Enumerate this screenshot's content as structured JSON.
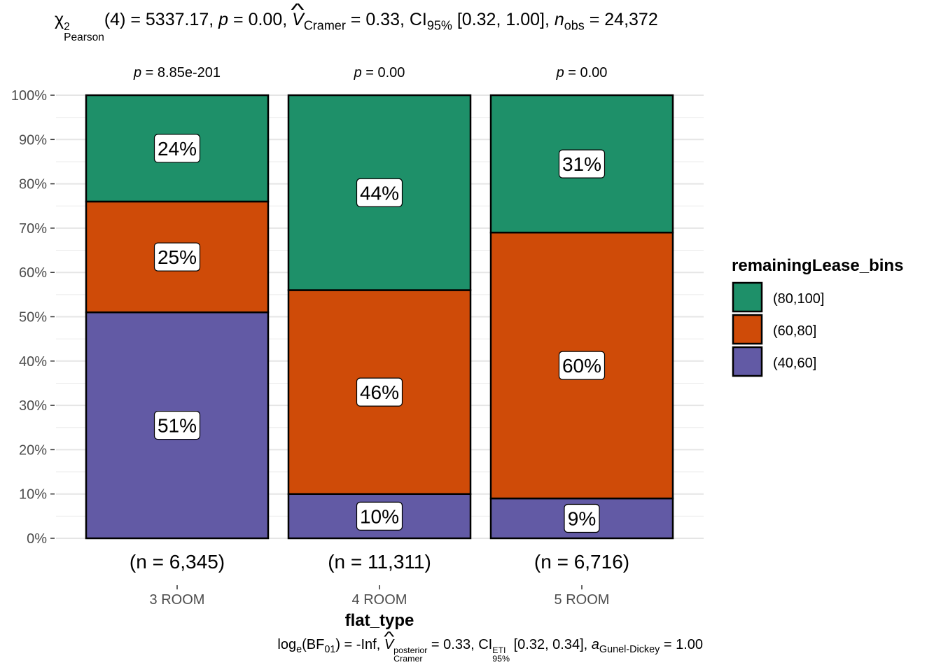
{
  "subtitle": {
    "chi": "χ",
    "chi_sup": "2",
    "chi_sub": "Pearson",
    "df": "(4) = 5337.17, ",
    "p_sym": "p",
    "p_val": " = 0.00, ",
    "v_sym": "V",
    "v_sub": "Cramer",
    "v_val": " = 0.33, ",
    "ci": "CI",
    "ci_sub": "95%",
    "ci_val": " [0.32, 1.00], ",
    "n_sym": "n",
    "n_sub": "obs",
    "n_val": " = 24,372"
  },
  "caption": {
    "log": "log",
    "log_sub": "e",
    "bf": "(BF",
    "bf_sub": "01",
    "bf_val": ") = -Inf, ",
    "v_sym": "V",
    "v_sup": "posterior",
    "v_sub": "Cramer",
    "v_val": " = 0.33, ",
    "ci": "CI",
    "ci_sup": "ETI",
    "ci_sub": "95%",
    "ci_val": " [0.32, 0.34], ",
    "a_sym": "a",
    "a_sub": "Gunel-Dickey",
    "a_val": " = 1.00"
  },
  "chart_data": {
    "type": "bar",
    "stacked": true,
    "xlabel": "flat_type",
    "ylabel": "",
    "ylim": [
      0,
      100
    ],
    "yticks": [
      "0%",
      "10%",
      "20%",
      "30%",
      "40%",
      "50%",
      "60%",
      "70%",
      "80%",
      "90%",
      "100%"
    ],
    "categories": [
      "3 ROOM",
      "4 ROOM",
      "5 ROOM"
    ],
    "n_labels": [
      "(n = 6,345)",
      "(n = 11,311)",
      "(n = 6,716)"
    ],
    "p_labels": [
      {
        "sym": "p",
        "val": " = 8.85e-201"
      },
      {
        "sym": "p",
        "val": " = 0.00"
      },
      {
        "sym": "p",
        "val": " = 0.00"
      }
    ],
    "legend_title": "remainingLease_bins",
    "legend_position": "right",
    "series": [
      {
        "name": "(40,60]",
        "color": "#625AA5",
        "values": [
          51,
          10,
          9
        ],
        "labels": [
          "51%",
          "10%",
          "9%"
        ]
      },
      {
        "name": "(60,80]",
        "color": "#CF4B08",
        "values": [
          25,
          46,
          60
        ],
        "labels": [
          "25%",
          "46%",
          "60%"
        ]
      },
      {
        "name": "(80,100]",
        "color": "#1E9069",
        "values": [
          24,
          44,
          31
        ],
        "labels": [
          "24%",
          "44%",
          "31%"
        ]
      }
    ]
  }
}
